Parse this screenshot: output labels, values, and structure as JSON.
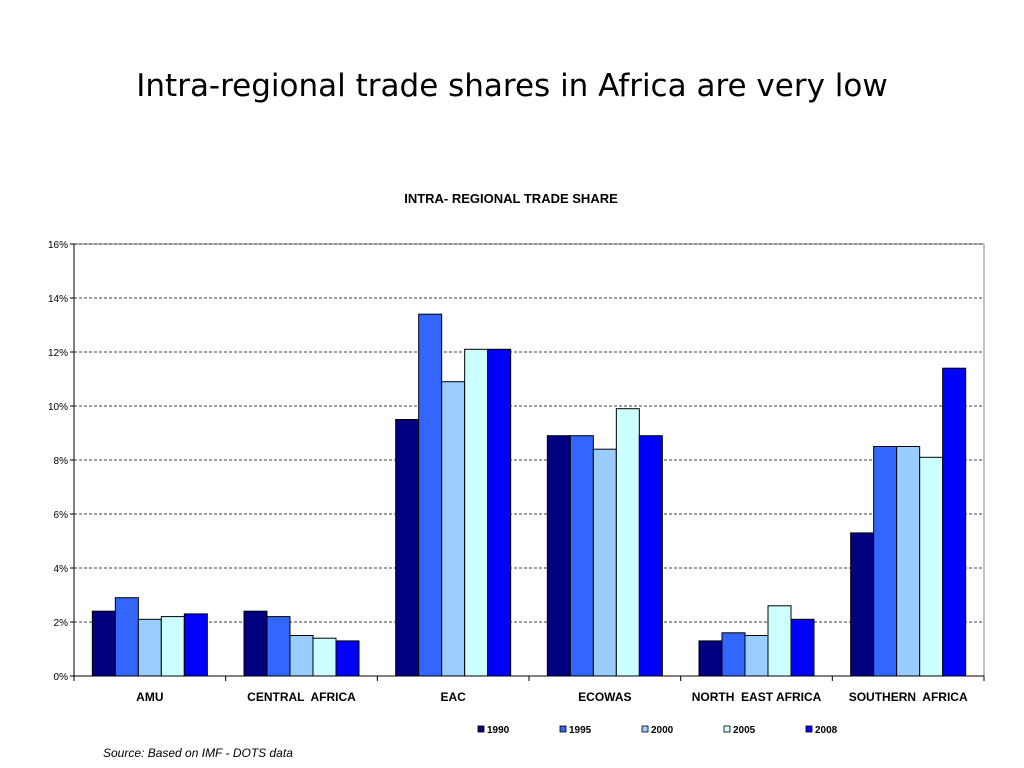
{
  "slide": {
    "title": "Intra-regional trade shares in Africa are very low",
    "source": "Source: Based on IMF - DOTS data"
  },
  "chart_data": {
    "type": "bar",
    "title": "INTRA- REGIONAL TRADE SHARE",
    "xlabel": "",
    "ylabel": "",
    "ylim": [
      0,
      16
    ],
    "yticks": [
      0,
      2,
      4,
      6,
      8,
      10,
      12,
      14,
      16
    ],
    "ytick_labels": [
      "0%",
      "2%",
      "4%",
      "6%",
      "8%",
      "10%",
      "12%",
      "14%",
      "16%"
    ],
    "grid": true,
    "legend_position": "bottom",
    "categories": [
      "AMU",
      "CENTRAL  AFRICA",
      "EAC",
      "ECOWAS",
      "NORTH  EAST AFRICA",
      "SOUTHERN  AFRICA"
    ],
    "series": [
      {
        "name": "1990",
        "color": "#000080",
        "values": [
          2.4,
          2.4,
          9.5,
          8.9,
          1.3,
          5.3
        ]
      },
      {
        "name": "1995",
        "color": "#3366FF",
        "values": [
          2.9,
          2.2,
          13.4,
          8.9,
          1.6,
          8.5
        ]
      },
      {
        "name": "2000",
        "color": "#99CCFF",
        "values": [
          2.1,
          1.5,
          10.9,
          8.4,
          1.5,
          8.5
        ]
      },
      {
        "name": "2005",
        "color": "#CCFFFF",
        "values": [
          2.2,
          1.4,
          12.1,
          9.9,
          2.6,
          8.1
        ]
      },
      {
        "name": "2008",
        "color": "#0000FF",
        "values": [
          2.3,
          1.3,
          12.1,
          8.9,
          2.1,
          11.4
        ]
      }
    ]
  }
}
